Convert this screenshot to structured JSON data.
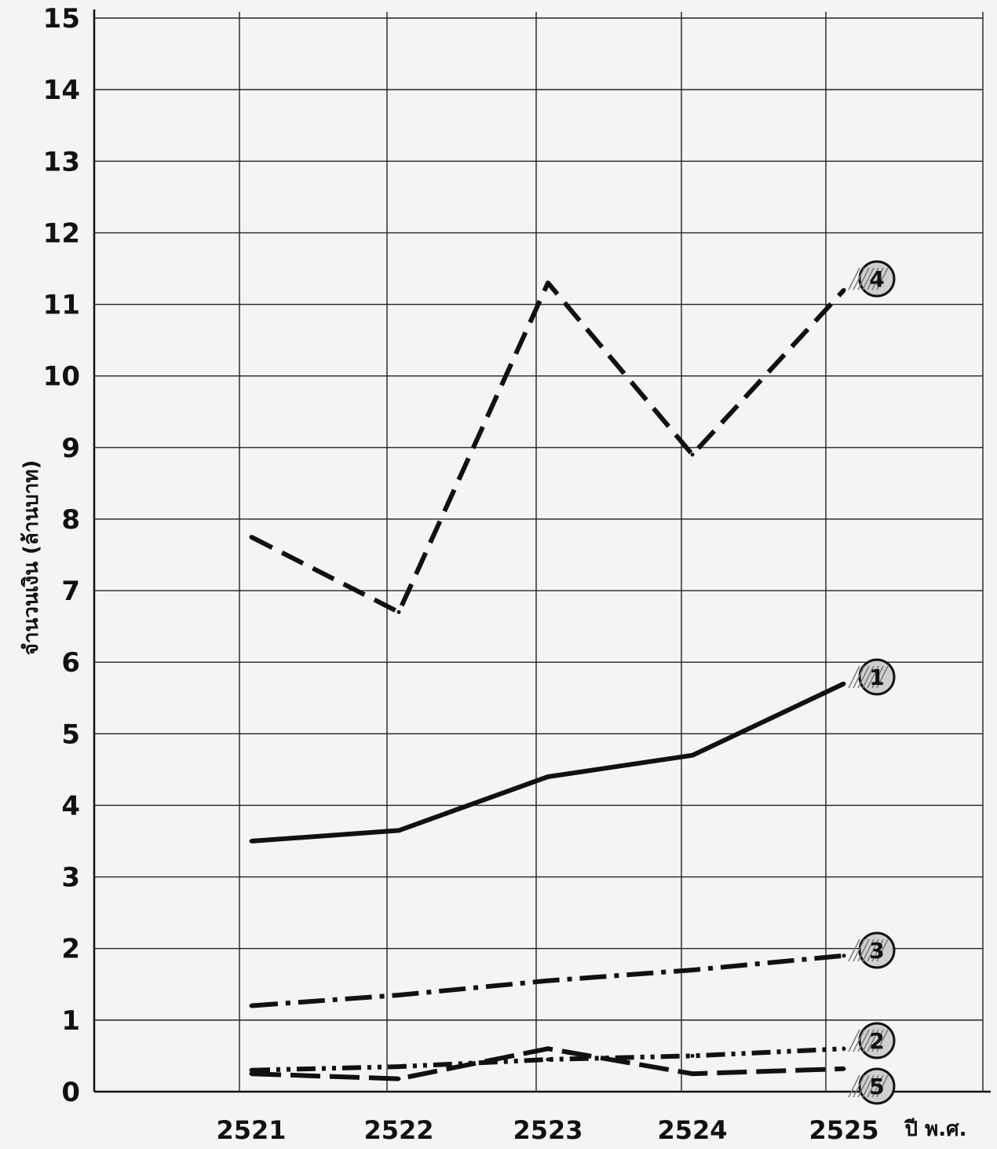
{
  "chart_data": {
    "type": "line",
    "title": "",
    "xlabel": "ปี พ.ศ.",
    "ylabel": "จำนวนเงิน (ล้านบาท)",
    "x": [
      "2521",
      "2522",
      "2523",
      "2524",
      "2525"
    ],
    "ylim": [
      0,
      15
    ],
    "yticks": [
      "0",
      "1",
      "2",
      "3",
      "4",
      "5",
      "6",
      "7",
      "8",
      "9",
      "10",
      "11",
      "12",
      "13",
      "14",
      "15"
    ],
    "grid": true,
    "legend": "none",
    "series": [
      {
        "name": "4",
        "style": "dashed",
        "values": [
          7.75,
          6.7,
          11.3,
          8.9,
          11.2
        ]
      },
      {
        "name": "1",
        "style": "solid",
        "values": [
          3.5,
          3.65,
          4.4,
          4.7,
          5.7
        ]
      },
      {
        "name": "3",
        "style": "dash-dot",
        "values": [
          1.2,
          1.35,
          1.55,
          1.7,
          1.9
        ]
      },
      {
        "name": "2",
        "style": "dash-dot-dot",
        "values": [
          0.3,
          0.35,
          0.45,
          0.5,
          0.6
        ]
      },
      {
        "name": "5",
        "style": "long-dash",
        "values": [
          0.25,
          0.18,
          0.6,
          0.25,
          0.32
        ]
      }
    ]
  }
}
